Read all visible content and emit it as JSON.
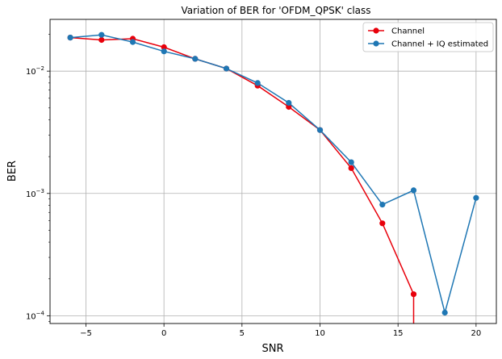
{
  "chart_data": {
    "type": "line",
    "title": "Variation of BER for 'OFDM_QPSK' class",
    "xlabel": "SNR",
    "ylabel": "BER",
    "xlim": [
      -7.3,
      21.3
    ],
    "ylim": [
      8.64e-05,
      0.0265
    ],
    "yscale": "log",
    "grid": true,
    "legend_position": "top-right",
    "x_ticks": [
      -5,
      0,
      5,
      10,
      15,
      20
    ],
    "x_tick_labels": [
      "−5",
      "0",
      "5",
      "10",
      "15",
      "20"
    ],
    "y_ticks": [
      0.0001,
      0.001,
      0.01
    ],
    "y_tick_base": "10",
    "y_tick_exponents": [
      "−4",
      "−3",
      "−2"
    ],
    "series": [
      {
        "name": "Channel",
        "color": "#e8000b",
        "x": [
          -6,
          -4,
          -2,
          0,
          2,
          4,
          6,
          8,
          10,
          12,
          14,
          16
        ],
        "y": [
          0.0188,
          0.018,
          0.0184,
          0.0157,
          0.0126,
          0.0105,
          0.0076,
          0.0051,
          0.0033,
          0.00161,
          0.00057,
          0.00015
        ],
        "drop_to_bottom_after_last": true
      },
      {
        "name": "Channel + IQ estimated",
        "color": "#1f77b4",
        "x": [
          -6,
          -4,
          -2,
          0,
          2,
          4,
          6,
          8,
          10,
          12,
          14,
          16,
          18,
          20
        ],
        "y": [
          0.0188,
          0.0198,
          0.0173,
          0.0145,
          0.0126,
          0.0105,
          0.008,
          0.0055,
          0.0033,
          0.0018,
          0.00081,
          0.00106,
          0.000106,
          0.00092
        ]
      }
    ]
  }
}
